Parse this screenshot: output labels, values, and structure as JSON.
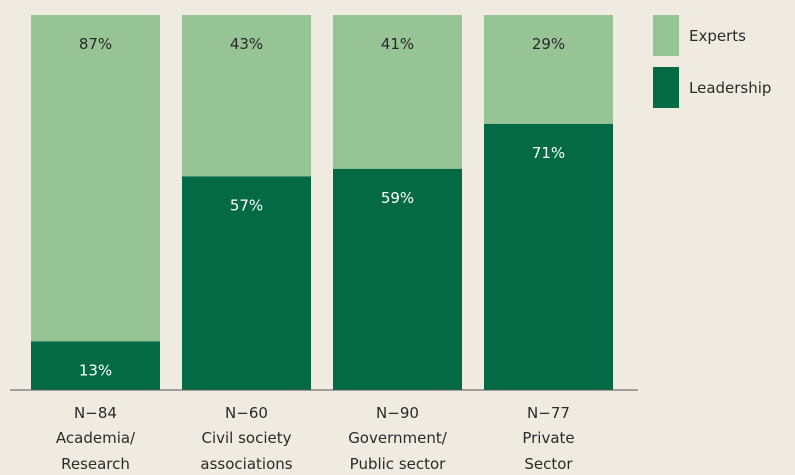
{
  "chart_data": {
    "type": "bar",
    "stacked": true,
    "normalized": true,
    "legend_position": "top-right",
    "categories": [
      {
        "n": "N−84",
        "line1": "Academia/",
        "line2": "Research"
      },
      {
        "n": "N−60",
        "line1": "Civil society",
        "line2": "associations"
      },
      {
        "n": "N−90",
        "line1": "Government/",
        "line2": "Public sector"
      },
      {
        "n": "N−77",
        "line1": "Private",
        "line2": "Sector"
      }
    ],
    "series": [
      {
        "name": "Leadership",
        "color": "#046a46",
        "values": [
          13,
          57,
          59,
          71
        ],
        "labels": [
          "13%",
          "57%",
          "59%",
          "71%"
        ]
      },
      {
        "name": "Experts",
        "color": "#97c495",
        "values": [
          87,
          43,
          41,
          29
        ],
        "labels": [
          "87%",
          "43%",
          "41%",
          "29%"
        ]
      }
    ],
    "ylim": [
      0,
      100
    ]
  }
}
